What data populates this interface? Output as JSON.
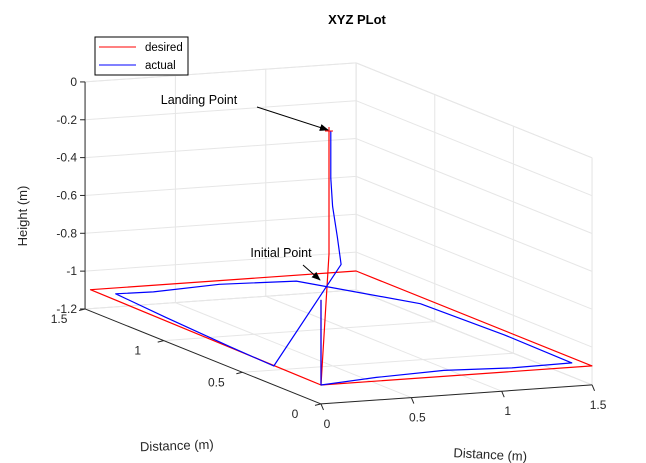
{
  "chart_data": {
    "type": "line",
    "projection": "3d",
    "title": "XYZ PLot",
    "xlabel": "Distance (m)",
    "ylabel": "Distance (m)",
    "zlabel": "Height (m)",
    "xlim": [
      0,
      1.5
    ],
    "ylim": [
      0,
      1.5
    ],
    "zlim": [
      -1.2,
      0
    ],
    "xticks": [
      0,
      0.5,
      1,
      1.5
    ],
    "yticks": [
      0,
      0.5,
      1,
      1.5
    ],
    "zticks": [
      0,
      -0.2,
      -0.4,
      -0.6,
      -0.8,
      -1,
      -1.2
    ],
    "xtick_labels": [
      "0",
      "0.5",
      "1",
      "1.5"
    ],
    "ytick_labels": [
      "0",
      "0.5",
      "1",
      "1.5"
    ],
    "ztick_labels": [
      "0",
      "-0.2",
      "-0.4",
      "-0.6",
      "-0.8",
      "-1",
      "-1.2"
    ],
    "grid": true,
    "legend_position": "top-left",
    "series": [
      {
        "name": "desired",
        "color": "#ff0000",
        "x": [
          0,
          0,
          1.5,
          1.5,
          0.03,
          0,
          1.35,
          1.35,
          1.35
        ],
        "y": [
          0,
          0,
          0,
          1.5,
          1.5,
          0,
          1.5,
          1.5,
          1.5
        ],
        "z": [
          -0.65,
          -1.1,
          -1.1,
          -1.1,
          -1.1,
          -1.1,
          -1.0,
          -0.78,
          -0.35
        ]
      },
      {
        "name": "actual",
        "color": "#0000ff",
        "x": [
          0,
          0,
          0.35,
          0.75,
          1.1,
          1.44,
          1.45,
          1.42,
          1.1,
          0.7,
          0.3,
          0.1,
          0.06,
          0.02,
          0.0,
          1.33,
          1.37,
          1.37,
          1.36,
          1.36,
          1.36
        ],
        "y": [
          0,
          0,
          0.05,
          0.08,
          0.05,
          0.06,
          0.5,
          1.0,
          1.42,
          1.45,
          1.41,
          1.42,
          1.06,
          0.6,
          0.3,
          1.4,
          1.47,
          1.5,
          1.5,
          1.5,
          1.5
        ],
        "z": [
          -0.65,
          -1.1,
          -1.1,
          -1.1,
          -1.1,
          -1.1,
          -1.1,
          -1.1,
          -1.1,
          -1.1,
          -1.1,
          -1.1,
          -1.1,
          -1.1,
          -1.1,
          -1.02,
          -0.9,
          -0.75,
          -0.6,
          -0.45,
          -0.35
        ]
      }
    ],
    "annotations": [
      {
        "text": "Initial Point",
        "x": 0,
        "y": 0,
        "z": -0.55
      },
      {
        "text": "Landing Point",
        "x": 1.35,
        "y": 1.5,
        "z": -0.35
      }
    ]
  }
}
